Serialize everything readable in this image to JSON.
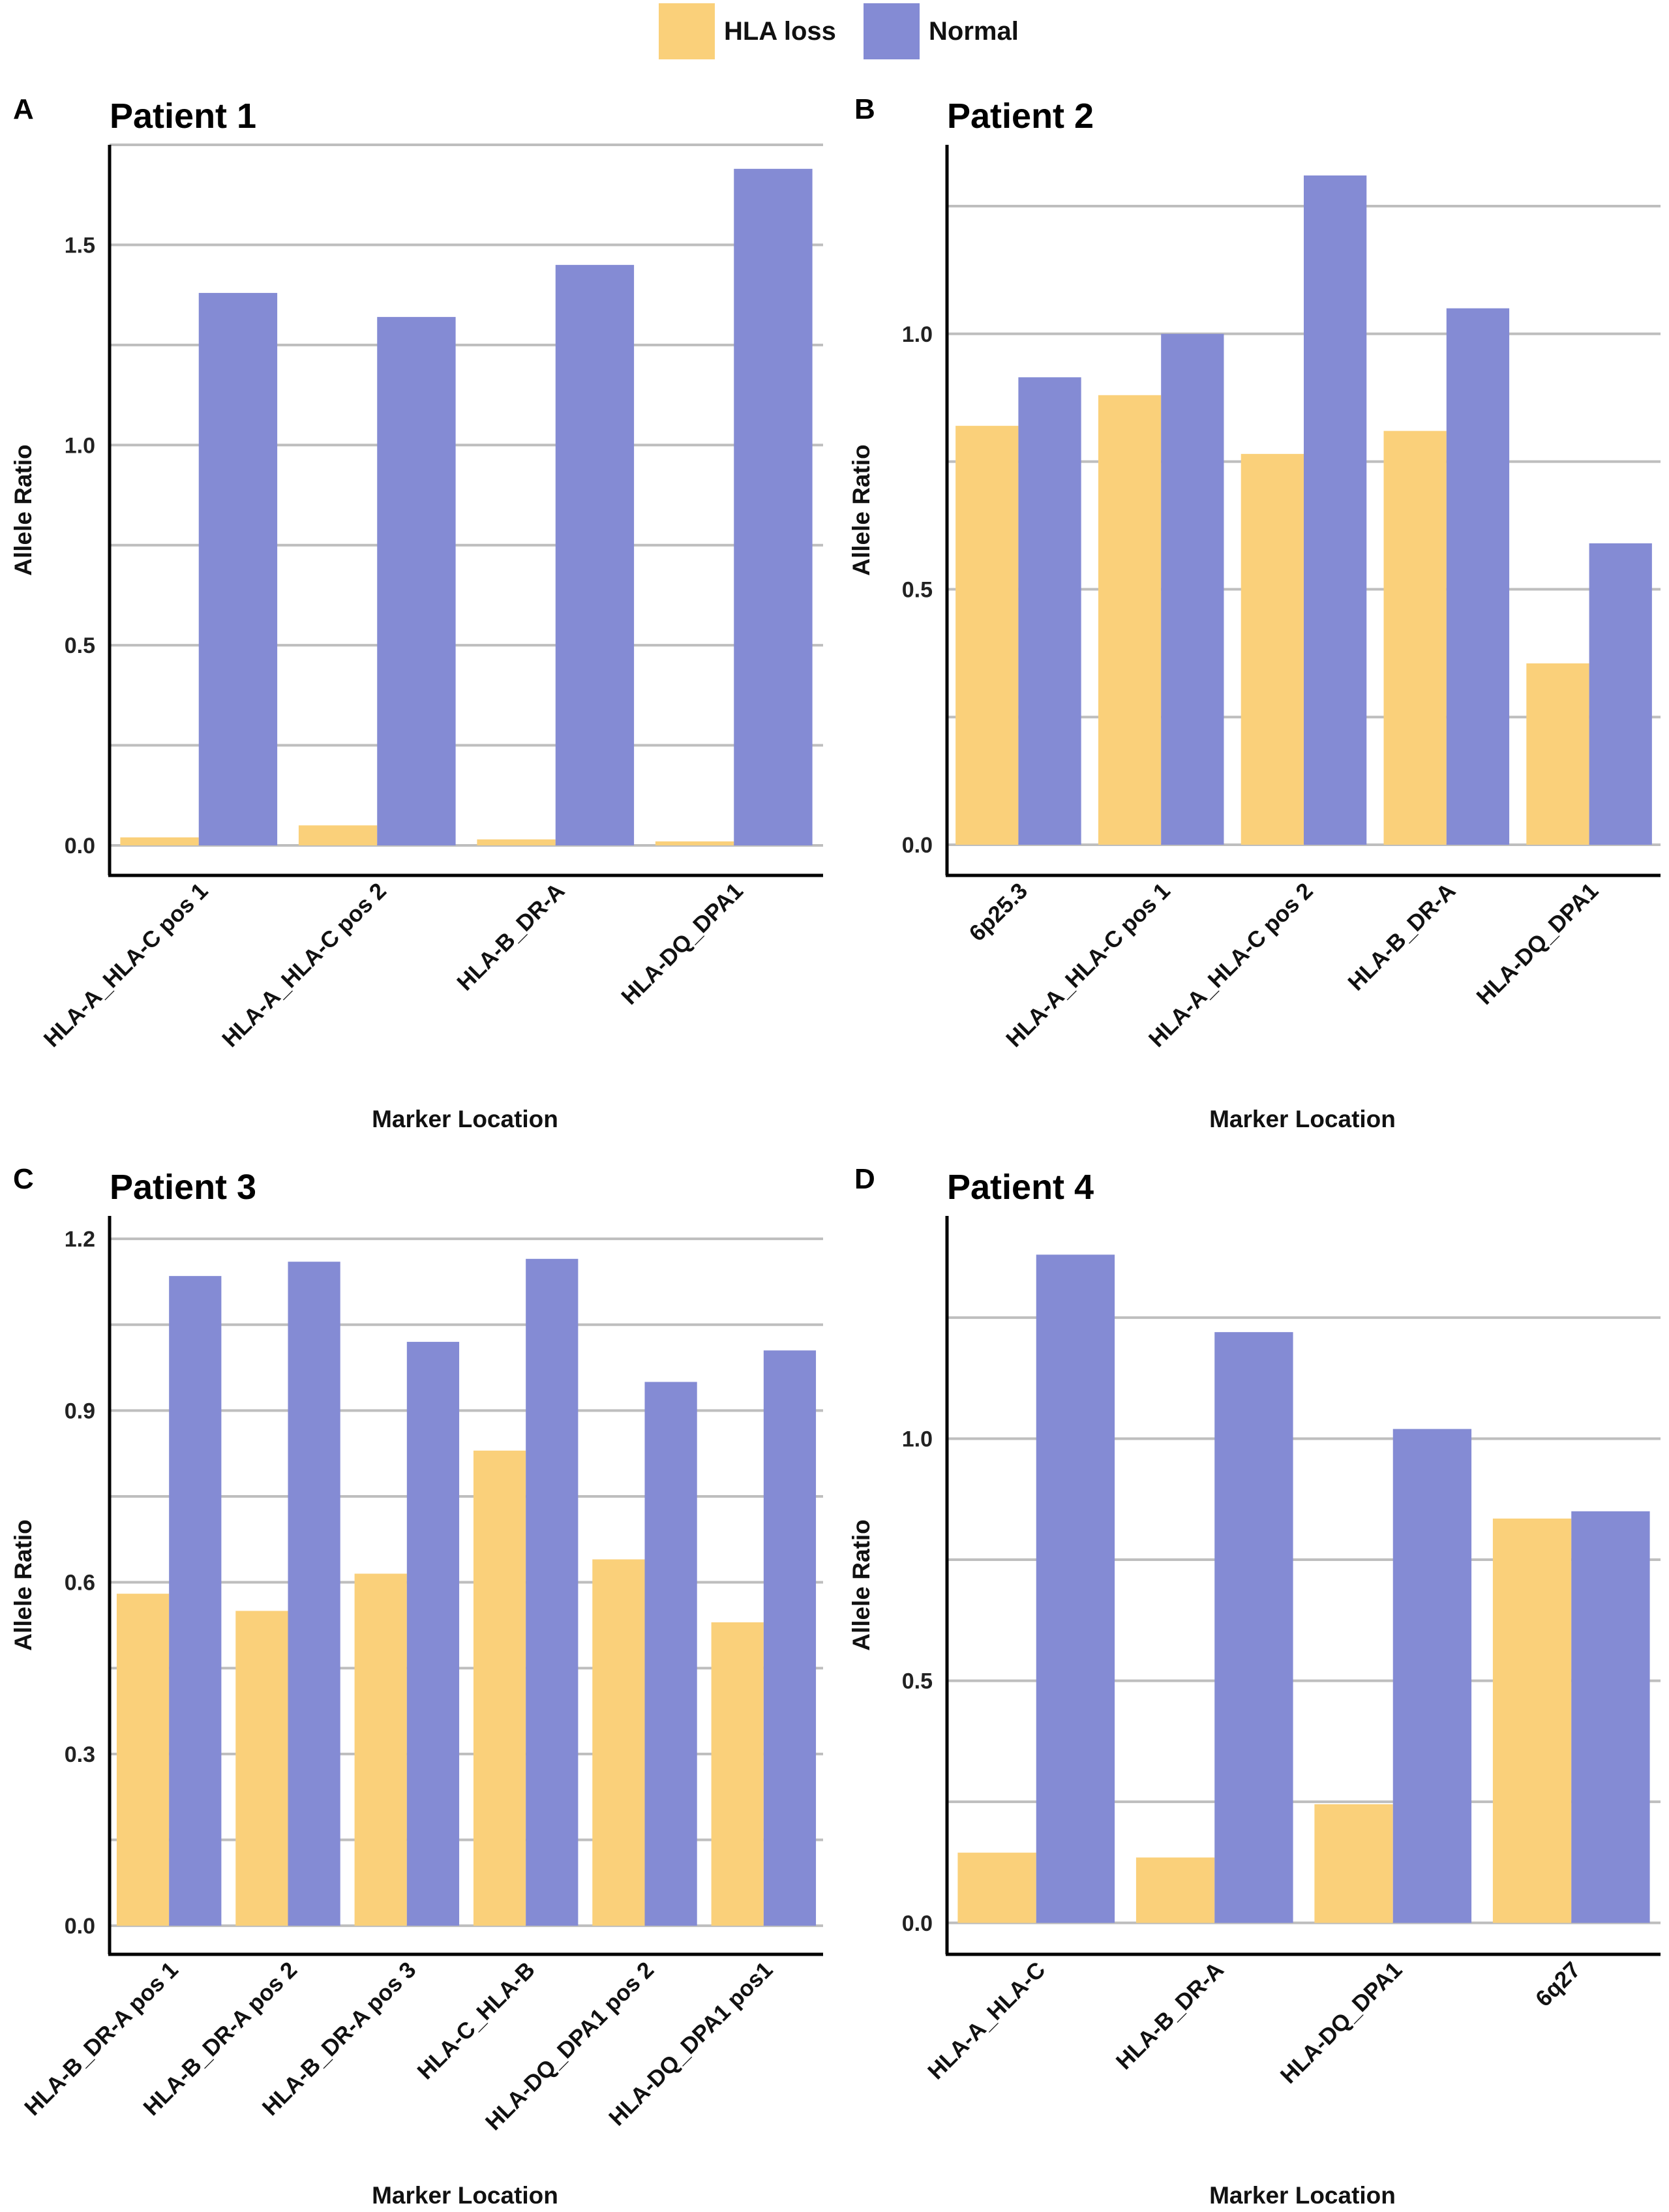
{
  "legend": {
    "items": [
      {
        "label": "HLA loss",
        "color": "#FAD07A"
      },
      {
        "label": "Normal",
        "color": "#848BD4"
      }
    ]
  },
  "colors": {
    "hla_loss": "#FAD07A",
    "normal": "#848BD4",
    "grid": "#BEBEBE",
    "axis": "#000000"
  },
  "chart_data": [
    {
      "type": "bar",
      "panel": "A",
      "title": "Patient 1",
      "xlabel": "Marker Location",
      "ylabel": "Allele Ratio",
      "categories": [
        "HLA-A_HLA-C pos 1",
        "HLA-A_HLA-C pos 2",
        "HLA-B_DR-A",
        "HLA-DQ_DPA1"
      ],
      "series": [
        {
          "name": "HLA loss",
          "values": [
            0.02,
            0.05,
            0.015,
            0.01
          ]
        },
        {
          "name": "Normal",
          "values": [
            1.38,
            1.32,
            1.45,
            1.69
          ]
        }
      ],
      "yticks": [
        "0.0",
        "0.5",
        "1.0",
        "1.5"
      ],
      "ytick_values": [
        0,
        0.5,
        1.0,
        1.5
      ],
      "ylim": [
        -0.075,
        1.75
      ],
      "grid_step": 0.25
    },
    {
      "type": "bar",
      "panel": "B",
      "title": "Patient 2",
      "xlabel": "Marker Location",
      "ylabel": "Allele Ratio",
      "categories": [
        "6p25.3",
        "HLA-A_HLA-C pos 1",
        "HLA-A_HLA-C pos 2",
        "HLA-B_DR-A",
        "HLA-DQ_DPA1"
      ],
      "series": [
        {
          "name": "HLA loss",
          "values": [
            0.82,
            0.88,
            0.765,
            0.81,
            0.355
          ]
        },
        {
          "name": "Normal",
          "values": [
            0.915,
            1.0,
            1.31,
            1.05,
            0.59
          ]
        }
      ],
      "yticks": [
        "0.0",
        "0.5",
        "1.0"
      ],
      "ytick_values": [
        0,
        0.5,
        1.0
      ],
      "ylim": [
        -0.06,
        1.37
      ],
      "grid_step": 0.25
    },
    {
      "type": "bar",
      "panel": "C",
      "title": "Patient 3",
      "xlabel": "Marker Location",
      "ylabel": "Allele Ratio",
      "categories": [
        "HLA-B_DR-A pos 1",
        "HLA-B_DR-A pos 2",
        "HLA-B_DR-A pos 3",
        "HLA-C_HLA-B",
        "HLA-DQ_DPA1 pos 2",
        "HLA-DQ_DPA1 pos1"
      ],
      "series": [
        {
          "name": "HLA loss",
          "values": [
            0.58,
            0.55,
            0.615,
            0.83,
            0.64,
            0.53
          ]
        },
        {
          "name": "Normal",
          "values": [
            1.135,
            1.16,
            1.02,
            1.165,
            0.95,
            1.005
          ]
        }
      ],
      "yticks": [
        "0.0",
        "0.3",
        "0.6",
        "0.9",
        "1.2"
      ],
      "ytick_values": [
        0,
        0.3,
        0.6,
        0.9,
        1.2
      ],
      "ylim": [
        -0.05,
        1.24
      ],
      "grid_step": 0.15
    },
    {
      "type": "bar",
      "panel": "D",
      "title": "Patient 4",
      "xlabel": "Marker Location",
      "ylabel": "Allele Ratio",
      "categories": [
        "HLA-A_HLA-C",
        "HLA-B_DR-A",
        "HLA-DQ_DPA1",
        "6q27"
      ],
      "series": [
        {
          "name": "HLA loss",
          "values": [
            0.145,
            0.135,
            0.245,
            0.835
          ]
        },
        {
          "name": "Normal",
          "values": [
            1.38,
            1.22,
            1.02,
            0.85
          ]
        }
      ],
      "yticks": [
        "0.0",
        "0.5",
        "1.0"
      ],
      "ytick_values": [
        0,
        0.5,
        1.0
      ],
      "ylim": [
        -0.065,
        1.46
      ],
      "grid_step": 0.25
    }
  ]
}
